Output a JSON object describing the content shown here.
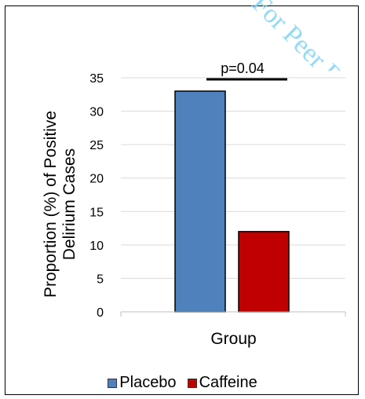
{
  "watermark_text": "For Peer Review",
  "chart_data": {
    "type": "bar",
    "categories": [
      "Placebo",
      "Caffeine"
    ],
    "values": [
      33,
      12
    ],
    "colors": [
      "#4f81bd",
      "#c00000"
    ],
    "xlabel": "Group",
    "ylabel_lines": [
      "Proportion (%) of Positive",
      "Delirium Cases"
    ],
    "ylim": [
      0,
      35
    ],
    "yticks": [
      0,
      5,
      10,
      15,
      20,
      25,
      30,
      35
    ],
    "grid": true,
    "legend_position": "bottom",
    "annotation": "p=0.04"
  }
}
